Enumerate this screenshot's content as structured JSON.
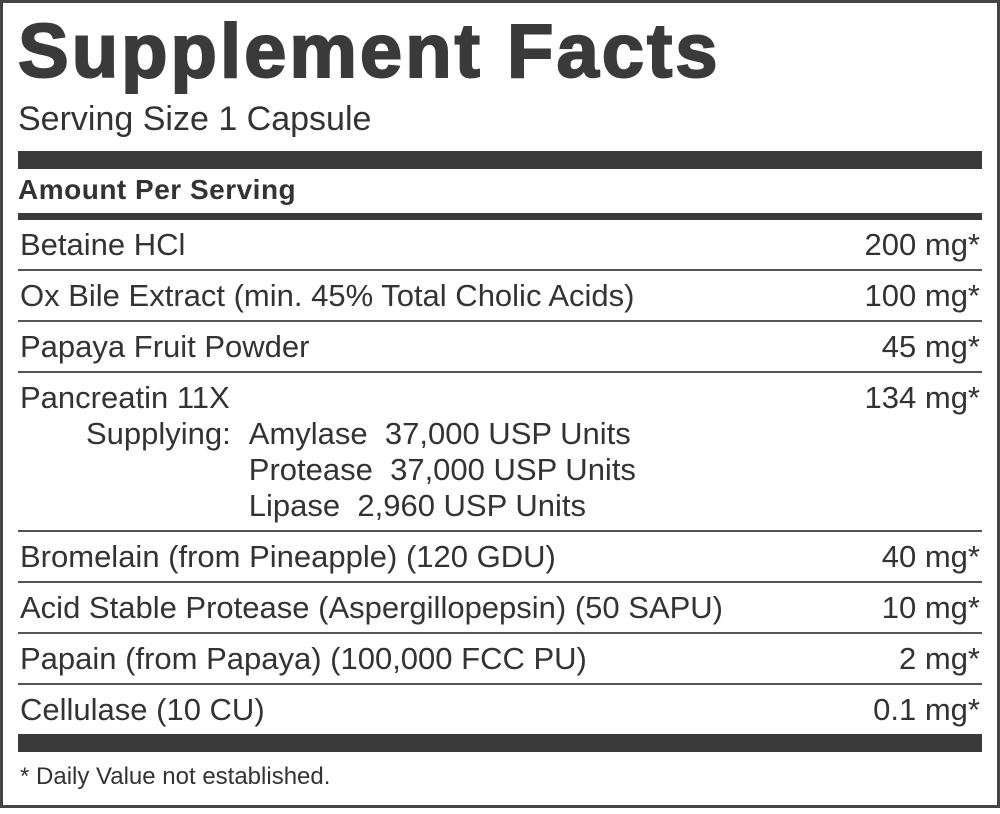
{
  "title": "Supplement Facts",
  "serving_size": "Serving Size 1 Capsule",
  "amount_header": "Amount Per Serving",
  "rows": [
    {
      "name": "Betaine HCl",
      "amount": "200 mg*"
    },
    {
      "name": "Ox Bile Extract (min. 45% Total Cholic Acids)",
      "amount": "100 mg*"
    },
    {
      "name": "Papaya Fruit Powder",
      "amount": "45 mg*"
    },
    {
      "name": "Pancreatin 11X",
      "amount": "134 mg*",
      "details": {
        "label": "Supplying:",
        "items": [
          "Amylase  37,000 USP Units",
          "Protease  37,000 USP Units",
          "Lipase  2,960 USP Units"
        ]
      }
    },
    {
      "name": "Bromelain (from Pineapple) (120 GDU)",
      "amount": "40 mg*"
    },
    {
      "name": "Acid Stable Protease (Aspergillopepsin) (50 SAPU)",
      "amount": "10 mg*"
    },
    {
      "name": "Papain (from Papaya) (100,000 FCC PU)",
      "amount": "2 mg*"
    },
    {
      "name": "Cellulase (10 CU)",
      "amount": "0.1 mg*"
    }
  ],
  "footnote": "* Daily Value not established."
}
